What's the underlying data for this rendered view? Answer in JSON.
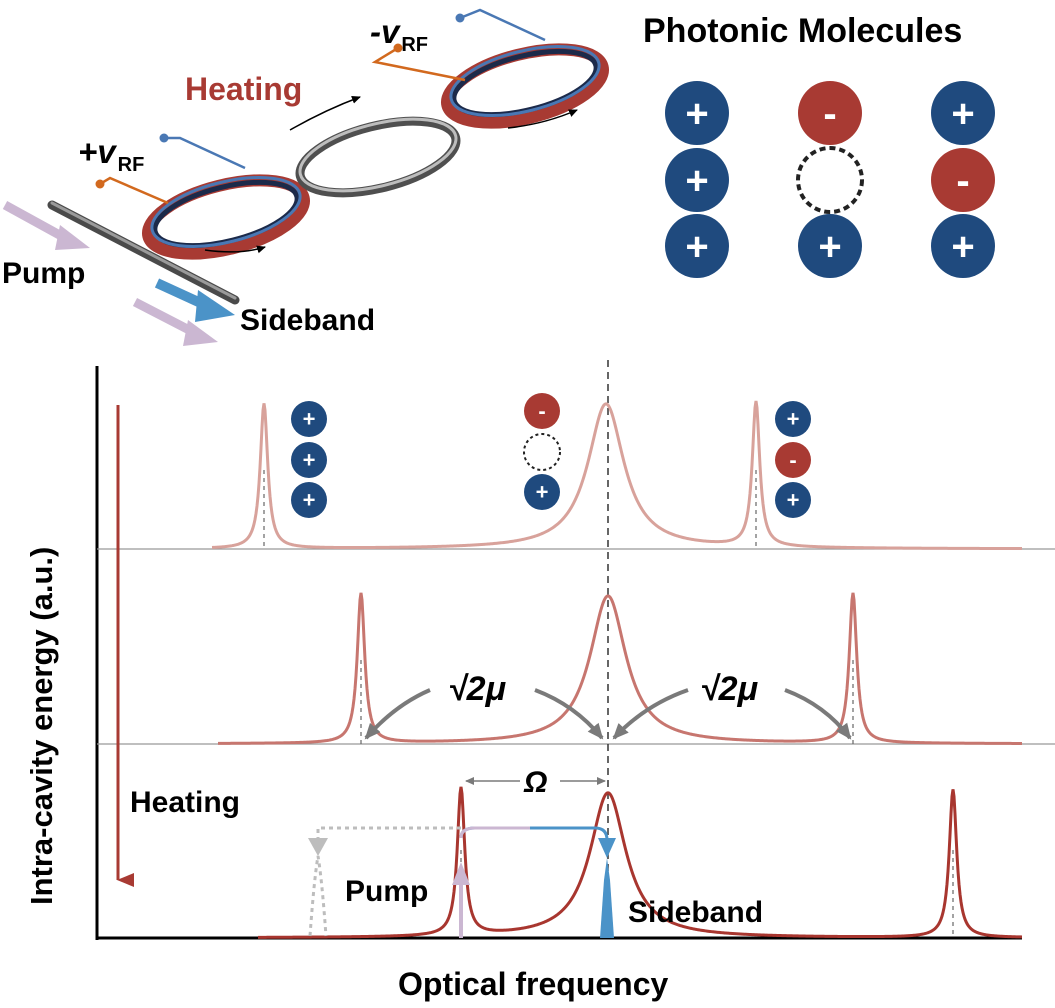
{
  "colors": {
    "plus": "#1F4A7E",
    "minus": "#A83A33",
    "heating": "#A83A33",
    "trace1": "#D8A29B",
    "trace2": "#C7766F",
    "trace3": "#A8362F",
    "orange": "#D2691E",
    "blue_wire": "#4A78B4",
    "sideband": "#4B93C8",
    "pump_arrow": "#CBB7D2",
    "gray_arrow": "#7A7A7A"
  },
  "top": {
    "title": "Photonic Molecules",
    "heating": "Heating",
    "plus_rf": "+v",
    "minus_rf": "-v",
    "rf_sub": "RF",
    "pump": "Pump",
    "sideband": "Sideband"
  },
  "molecules": {
    "columns": [
      [
        "+",
        "+",
        "+"
      ],
      [
        "-",
        "",
        "+"
      ],
      [
        "+",
        "-",
        "+"
      ]
    ]
  },
  "spectrum": {
    "ylabel": "Intra-cavity energy (a.u.)",
    "xlabel": "Optical frequency",
    "heating": "Heating",
    "coupling_left": "√2μ",
    "coupling_right": "√2μ",
    "omega": "Ω",
    "pump": "Pump",
    "sideband": "Sideband",
    "panel1_states": [
      [
        "+",
        "+",
        "+"
      ],
      [
        "-",
        "",
        "+"
      ],
      [
        "+",
        "-",
        "+"
      ]
    ]
  }
}
